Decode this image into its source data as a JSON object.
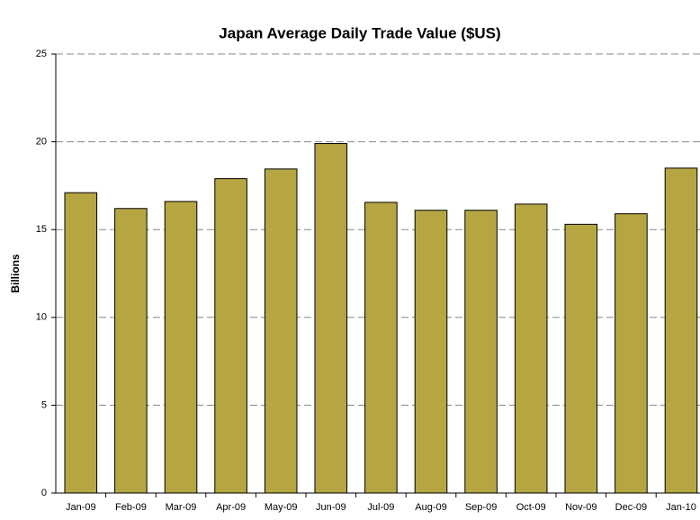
{
  "chart_data": {
    "type": "bar",
    "title": "Japan Average Daily Trade Value ($US)",
    "y_label": "Billions",
    "categories": [
      "Jan-09",
      "Feb-09",
      "Mar-09",
      "Apr-09",
      "May-09",
      "Jun-09",
      "Jul-09",
      "Aug-09",
      "Sep-09",
      "Oct-09",
      "Nov-09",
      "Dec-09",
      "Jan-10"
    ],
    "values": [
      17.1,
      16.2,
      16.6,
      17.9,
      18.45,
      19.9,
      16.55,
      16.1,
      16.1,
      16.45,
      15.3,
      15.9,
      18.5
    ],
    "color": "#b5a642",
    "ylim": [
      0,
      25
    ],
    "yticks": [
      0,
      5,
      10,
      15,
      20,
      25
    ],
    "grid": true
  }
}
